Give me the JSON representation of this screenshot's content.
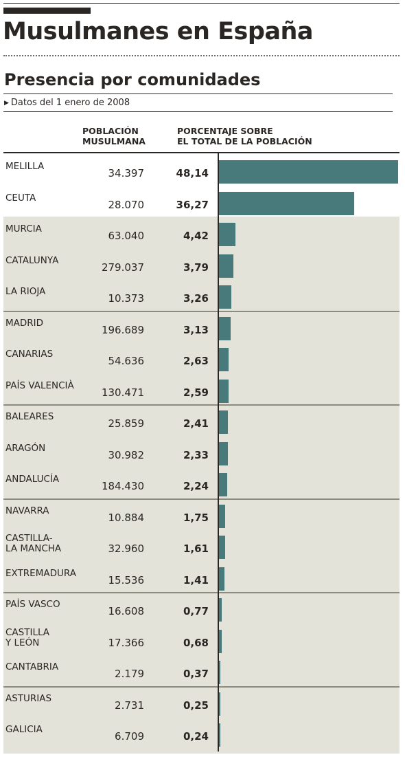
{
  "header": {
    "title": "Musulmanes en España",
    "subtitle": "Presencia por comunidades",
    "date_note": "Datos del 1 enero de 2008"
  },
  "columns": {
    "population": [
      "POBLACIÓN",
      "MUSULMANA"
    ],
    "percentage": [
      "PORCENTAJE SOBRE",
      "EL TOTAL DE LA POBLACIÓN"
    ]
  },
  "colors": {
    "bar": "#487a7b",
    "band": "#e4e3d9",
    "text": "#2a2624"
  },
  "chart_data": {
    "type": "bar",
    "orientation": "horizontal",
    "title": "Presencia por comunidades",
    "categories": [
      "MELILLA",
      "CEUTA",
      "MURCIA",
      "CATALUNYA",
      "LA RIOJA",
      "MADRID",
      "CANARIAS",
      "PAÍS VALENCIÀ",
      "BALEARES",
      "ARAGÓN",
      "ANDALUCÍA",
      "NAVARRA",
      "CASTILLA-\nLA MANCHA",
      "EXTREMADURA",
      "PAÍS VASCO",
      "CASTILLA\nY LEÓN",
      "CANTABRIA",
      "ASTURIAS",
      "GALICIA"
    ],
    "population_labels": [
      "34.397",
      "28.070",
      "63.040",
      "279.037",
      "10.373",
      "196.689",
      "54.636",
      "130.471",
      "25.859",
      "30.982",
      "184.430",
      "10.884",
      "32.960",
      "15.536",
      "16.608",
      "17.366",
      "2.179",
      "2.731",
      "6.709"
    ],
    "percentage_labels": [
      "48,14",
      "36,27",
      "4,42",
      "3,79",
      "3,26",
      "3,13",
      "2,63",
      "2,59",
      "2,41",
      "2,33",
      "2,24",
      "1,75",
      "1,61",
      "1,41",
      "0,77",
      "0,68",
      "0,37",
      "0,25",
      "0,24"
    ],
    "values": [
      48.14,
      36.27,
      4.42,
      3.79,
      3.26,
      3.13,
      2.63,
      2.59,
      2.41,
      2.33,
      2.24,
      1.75,
      1.61,
      1.41,
      0.77,
      0.68,
      0.37,
      0.25,
      0.24
    ],
    "xlim": [
      0,
      48.14
    ],
    "grid": false
  }
}
